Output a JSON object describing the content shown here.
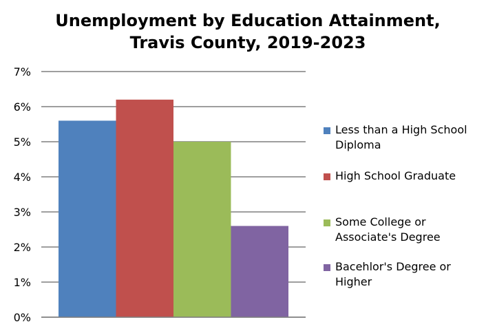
{
  "chart_data": {
    "type": "bar",
    "title": "Unemployment by Education Attainment,",
    "subtitle": "Travis County, 2019-2023",
    "xlabel": "",
    "ylabel": "",
    "ylim": [
      0,
      7
    ],
    "y_ticks": [
      "0%",
      "1%",
      "2%",
      "3%",
      "4%",
      "5%",
      "6%",
      "7%"
    ],
    "categories": [
      ""
    ],
    "grid": true,
    "legend_position": "right",
    "series": [
      {
        "name": "Less than a High School Diploma",
        "legend_lines": [
          "Less than a High School",
          "Diploma"
        ],
        "values": [
          5.6
        ],
        "color": "#4f81bd"
      },
      {
        "name": "High School Graduate",
        "legend_lines": [
          "High School Graduate"
        ],
        "values": [
          6.2
        ],
        "color": "#c0504d"
      },
      {
        "name": "Some College or Associate's Degree",
        "legend_lines": [
          "Some College or",
          "Associate's Degree"
        ],
        "values": [
          5.0
        ],
        "color": "#9bbb59"
      },
      {
        "name": "Bacehlor's Degree or Higher",
        "legend_lines": [
          "Bacehlor's Degree or",
          "Higher"
        ],
        "values": [
          2.6
        ],
        "color": "#8064a2"
      }
    ]
  }
}
